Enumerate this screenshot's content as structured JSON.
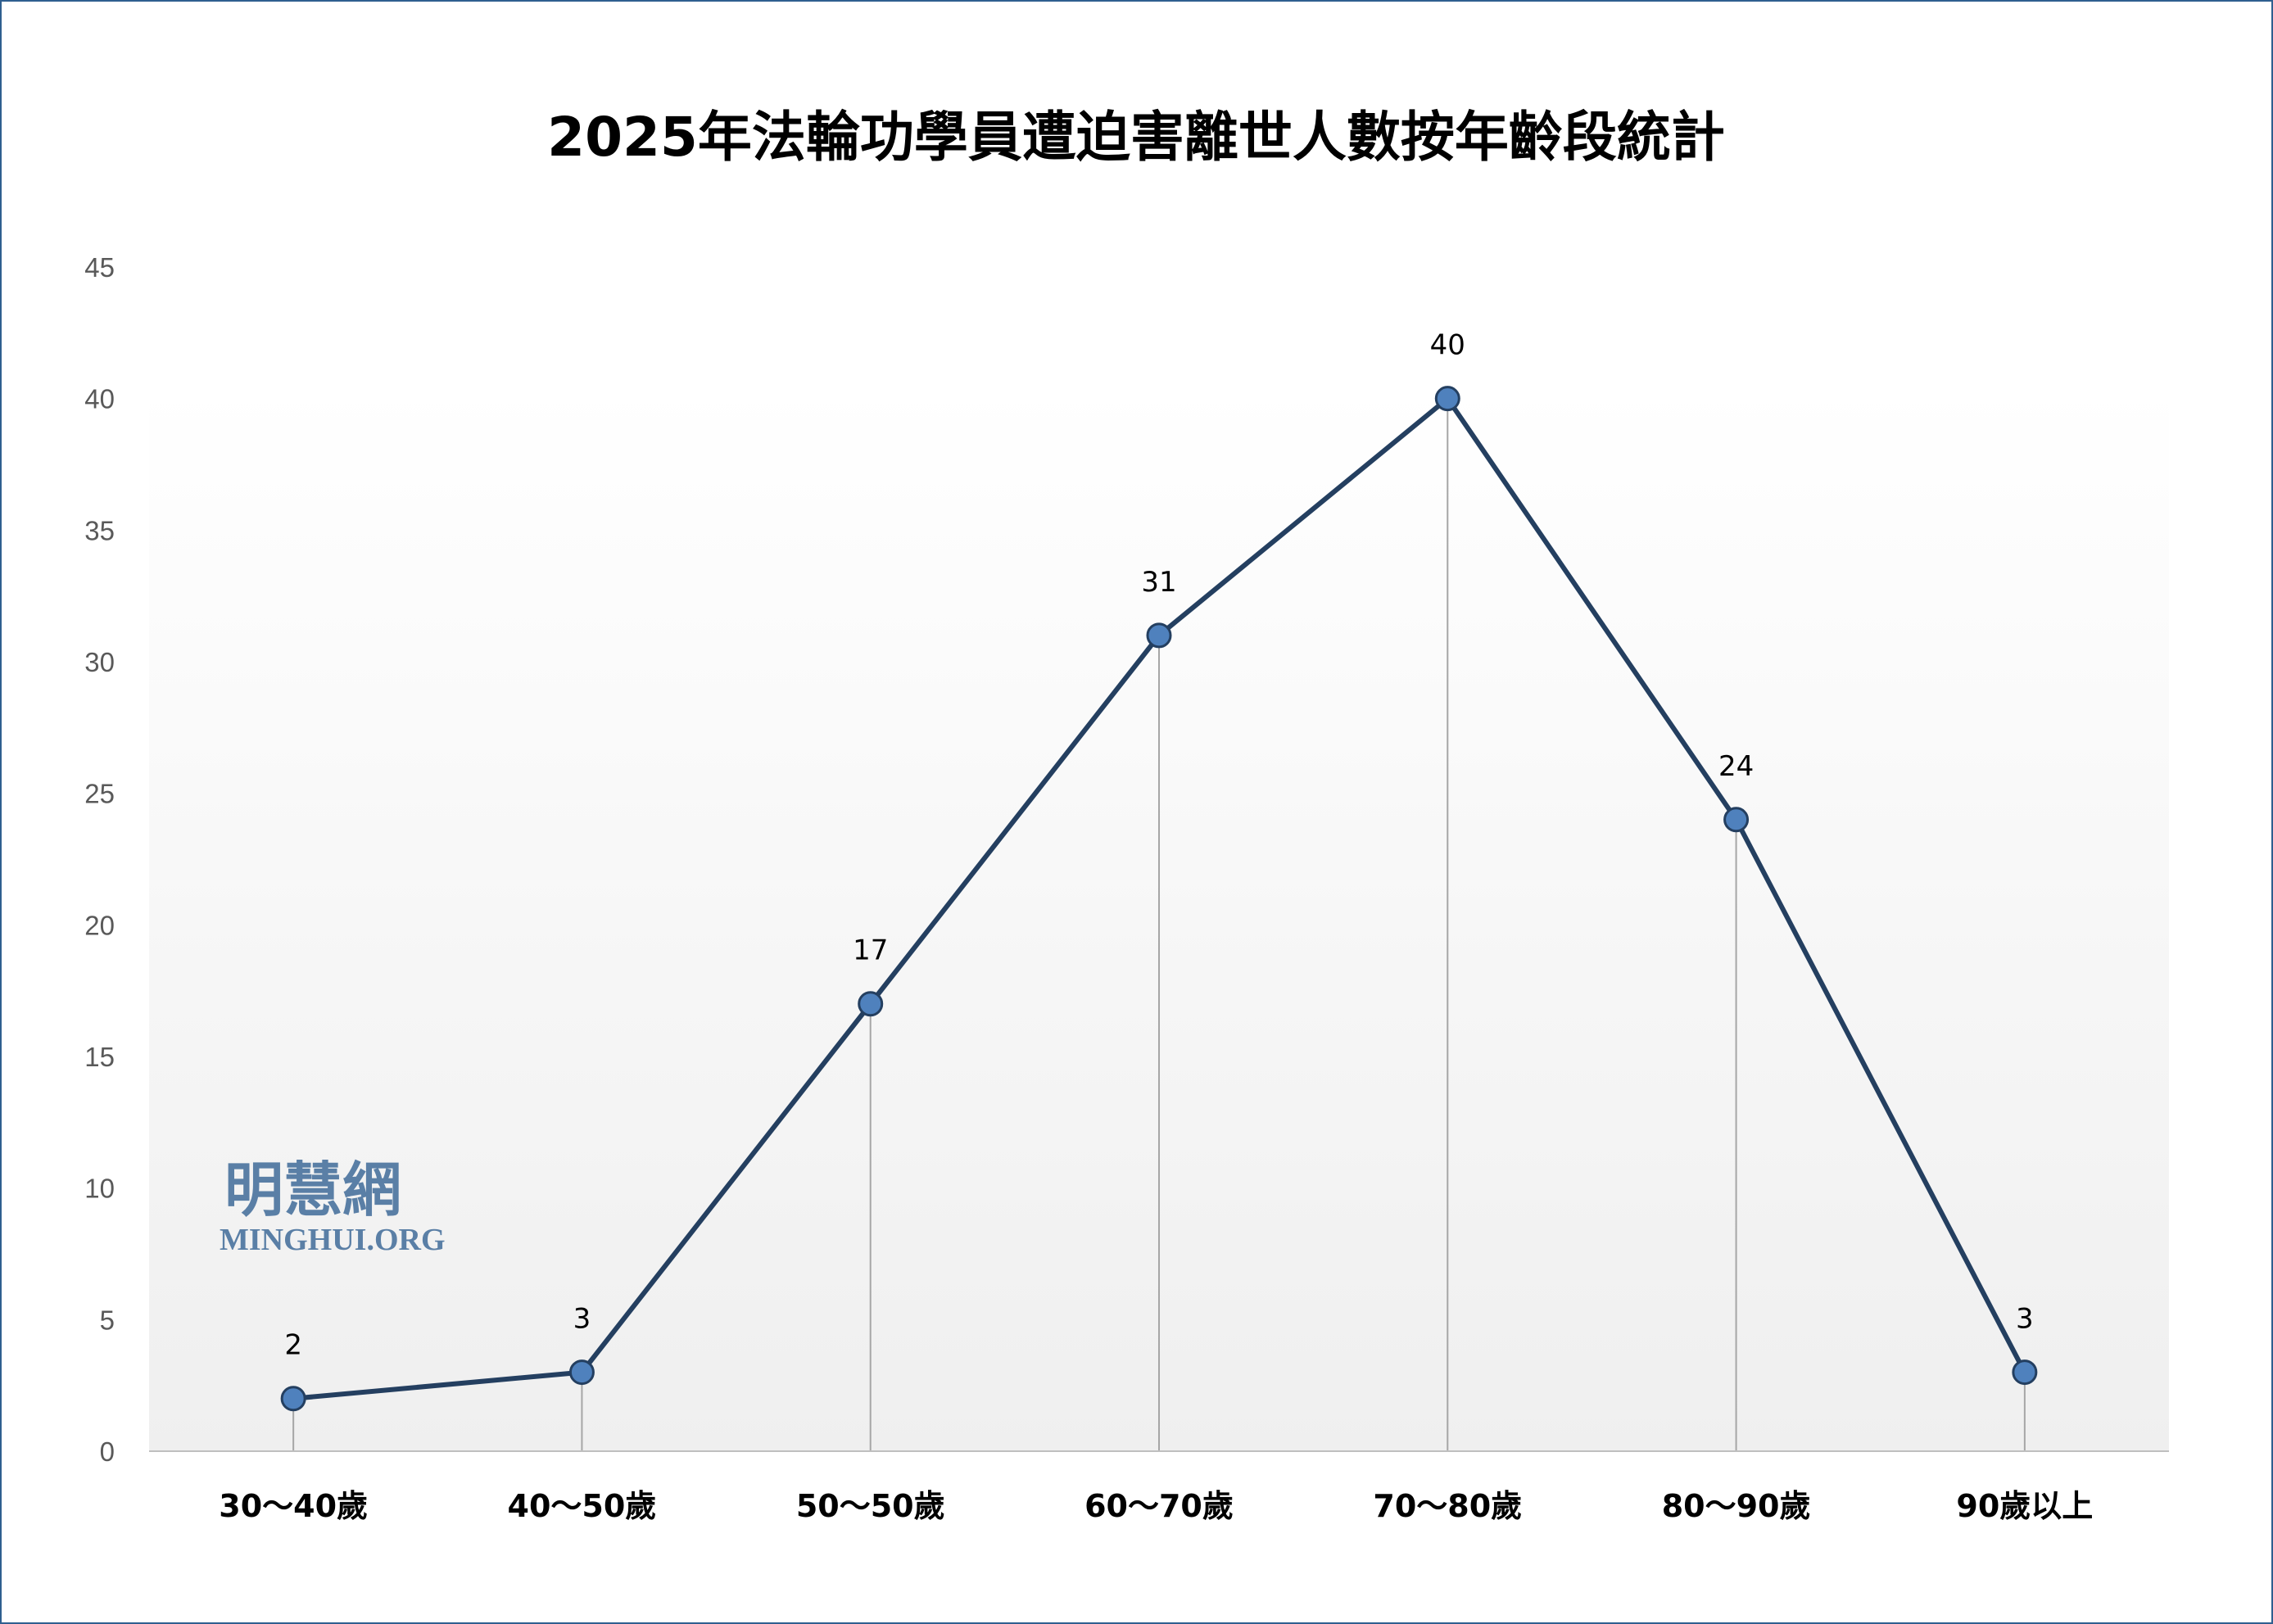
{
  "chart_data": {
    "type": "line",
    "title": "2025年法輪功學員遭迫害離世人數按年齡段統計",
    "xlabel": "",
    "ylabel": "",
    "categories": [
      "30～40歲",
      "40～50歲",
      "50～50歲",
      "60～70歲",
      "70～80歲",
      "80～90歲",
      "90歲以上"
    ],
    "values": [
      2,
      3,
      17,
      31,
      40,
      24,
      3
    ],
    "ylim": [
      0,
      45
    ],
    "yticks": [
      0,
      5,
      10,
      15,
      20,
      25,
      30,
      35,
      40,
      45
    ],
    "grid": false,
    "drop_lines": true,
    "data_labels": true,
    "line_color": "#243f60",
    "marker_color": "#4f81bd",
    "background": "gradient white to light gray"
  },
  "watermark": {
    "chinese": "明慧網",
    "latin": "MINGHUI.ORG"
  }
}
